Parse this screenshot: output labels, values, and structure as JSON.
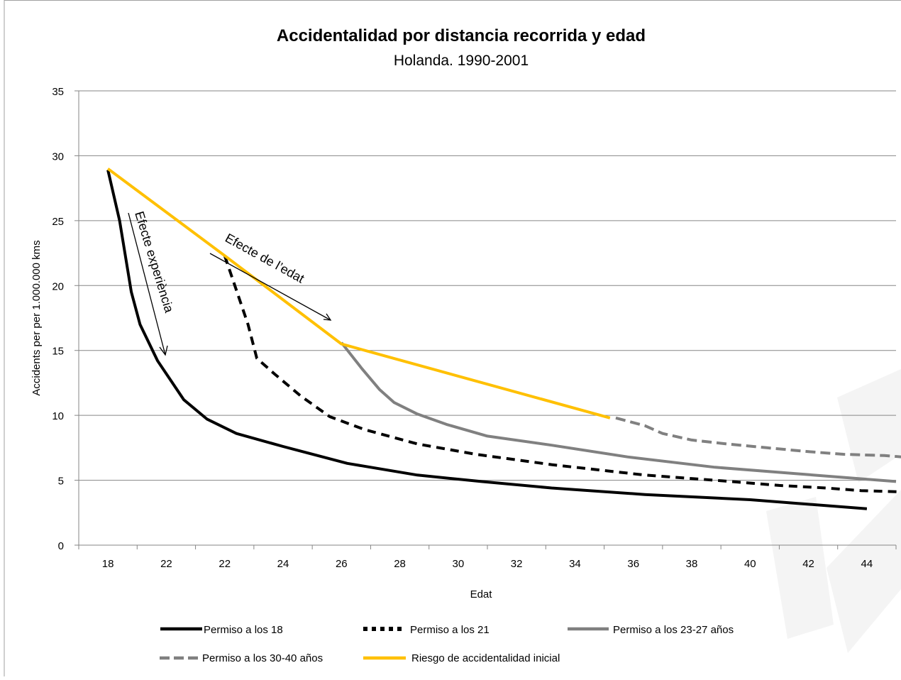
{
  "chart_data": {
    "type": "line",
    "title": "Accidentalidad por distancia recorrida y edad",
    "subtitle": "Holanda. 1990-2001",
    "xlabel": "Edat",
    "ylabel": "Accidents per per 1.000.000 kms",
    "x_ticks": [
      "18",
      "22",
      "22",
      "24",
      "26",
      "28",
      "30",
      "32",
      "34",
      "36",
      "38",
      "40",
      "42",
      "44"
    ],
    "ylim": [
      0,
      35
    ],
    "y_ticks": [
      "0",
      "5",
      "10",
      "15",
      "20",
      "25",
      "30",
      "35"
    ],
    "grid": true,
    "legend_position": "bottom",
    "series": [
      {
        "name": "Permiso a los 18",
        "color": "#000000",
        "style": "solid",
        "x": [
          0,
          0.2,
          0.4,
          0.55,
          0.85,
          1.3,
          1.7,
          2.2,
          3.0,
          4.1,
          5.3,
          6.4,
          7.6,
          9.2,
          11.0,
          13.0
        ],
        "y": [
          28.9,
          25.0,
          19.5,
          17.0,
          14.2,
          11.2,
          9.7,
          8.6,
          7.6,
          6.3,
          5.4,
          4.9,
          4.4,
          3.9,
          3.5,
          2.8
        ]
      },
      {
        "name": "Permiso a los 21",
        "color": "#000000",
        "style": "dashed",
        "x": [
          2.0,
          2.4,
          2.55,
          2.85,
          3.3,
          3.8,
          4.4,
          5.3,
          6.3,
          7.6,
          9.2,
          10.4,
          11.5,
          12.3,
          12.9,
          13.6
        ],
        "y": [
          22.3,
          17.0,
          14.4,
          13.2,
          11.5,
          9.9,
          8.9,
          7.8,
          7.0,
          6.2,
          5.4,
          5.0,
          4.6,
          4.4,
          4.2,
          4.1
        ]
      },
      {
        "name": "Permiso a los 23-27 años",
        "color": "#808080",
        "style": "solid",
        "x": [
          4.0,
          4.35,
          4.65,
          4.9,
          5.3,
          5.8,
          6.5,
          7.6,
          8.9,
          10.4,
          11.8,
          13.5
        ],
        "y": [
          15.6,
          13.6,
          12.0,
          11.0,
          10.1,
          9.3,
          8.4,
          7.7,
          6.8,
          6.0,
          5.5,
          4.9
        ]
      },
      {
        "name": "Permiso a los 30-40 años",
        "color": "#808080",
        "style": "dashed",
        "x": [
          8.7,
          9.2,
          9.5,
          10.0,
          10.6,
          11.3,
          12.0,
          12.6,
          13.3,
          13.6
        ],
        "y": [
          9.8,
          9.2,
          8.6,
          8.1,
          7.8,
          7.5,
          7.2,
          7.0,
          6.9,
          6.8
        ]
      },
      {
        "name": "Riesgo de accidentalidad inicial",
        "color": "#FFC000",
        "style": "solid",
        "x": [
          0,
          2.0,
          4.0,
          8.6
        ],
        "y": [
          29.0,
          22.3,
          15.5,
          9.8
        ]
      }
    ],
    "annotations": [
      {
        "text": "Efecte experiència"
      },
      {
        "text": "Efecte de l’edat"
      }
    ]
  }
}
